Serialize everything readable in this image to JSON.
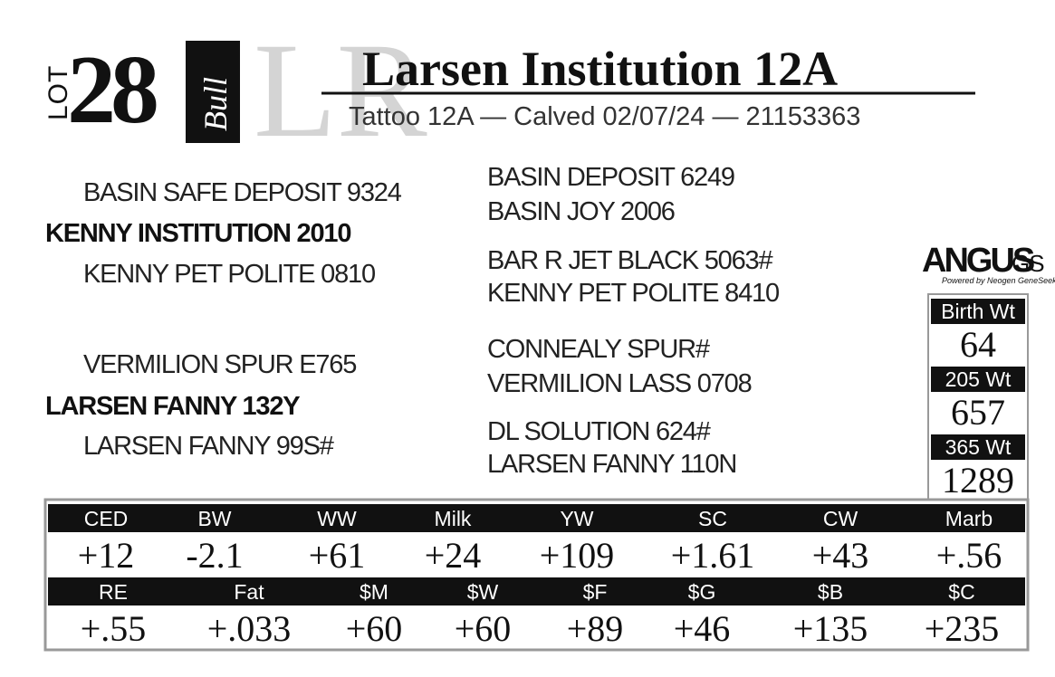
{
  "lot": {
    "label": "LOT",
    "number": "28",
    "sex": "Bull"
  },
  "watermark": "LR",
  "header": {
    "title": "Larsen Institution 12A",
    "subtitle": "Tattoo 12A — Calved 02/07/24 — 21153363"
  },
  "pedigree": {
    "sire": {
      "name": "KENNY INSTITUTION 2010",
      "sire": "BASIN SAFE DEPOSIT 9324",
      "dam": "KENNY PET POLITE 0810",
      "sire_sire": "BASIN DEPOSIT 6249",
      "sire_dam": "BASIN JOY 2006",
      "dam_sire": "BAR R JET BLACK 5063#",
      "dam_dam": "KENNY PET POLITE 8410"
    },
    "dam": {
      "name": "LARSEN FANNY 132Y",
      "sire": "VERMILION SPUR E765",
      "dam": "LARSEN FANNY 99S#",
      "sire_sire": "CONNEALY SPUR#",
      "sire_dam": "VERMILION LASS 0708",
      "dam_sire": "DL SOLUTION 624#",
      "dam_dam": "LARSEN FANNY 110N"
    }
  },
  "logo": {
    "brand": "ANGUS",
    "suffix": "GS",
    "tagline": "Powered by Neogen GeneSeek"
  },
  "weights": [
    {
      "label": "Birth Wt",
      "value": "64"
    },
    {
      "label": "205 Wt",
      "value": "657"
    },
    {
      "label": "365 Wt",
      "value": "1289"
    }
  ],
  "epd_table": {
    "rows": [
      {
        "headers": [
          "CED",
          "BW",
          "WW",
          "Milk",
          "YW",
          "SC",
          "CW",
          "Marb"
        ],
        "values": [
          "+12",
          "-2.1",
          "+61",
          "+24",
          "+109",
          "+1.61",
          "+43",
          "+.56"
        ]
      },
      {
        "headers": [
          "RE",
          "Fat",
          "$M",
          "$W",
          "$F",
          "$G",
          "$B",
          "$C"
        ],
        "values": [
          "+.55",
          "+.033",
          "+60",
          "+60",
          "+89",
          "+46",
          "+135",
          "+235"
        ]
      }
    ]
  }
}
